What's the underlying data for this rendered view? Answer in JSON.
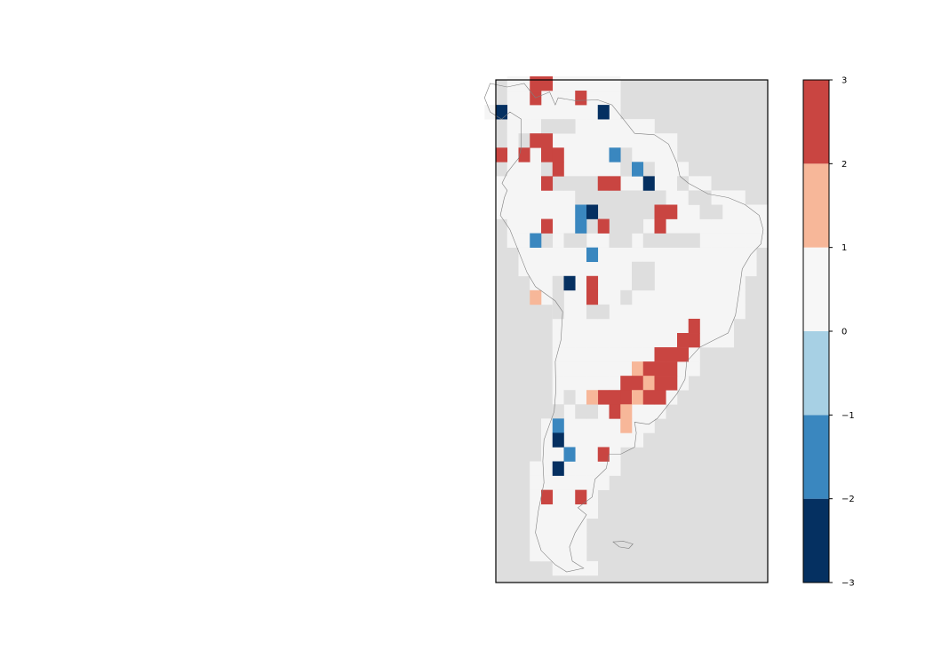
{
  "map": {
    "region": "South America",
    "background_color": "#dedede",
    "coastline_color": "#7f7f7f",
    "grid": {
      "lon_min": -82,
      "lon_max": -34,
      "lat_min": -57,
      "lat_max": 13.5,
      "cell_deg": 2
    },
    "land_fill_color": "#f5f5f5",
    "land_rows": [
      {
        "lat": 13,
        "cells": [
          [
            -79,
            -75
          ],
          [
            -73,
            -71
          ],
          [
            -69,
            -61
          ]
        ]
      },
      {
        "lat": 11,
        "cells": [
          [
            -79,
            -75
          ],
          [
            -73,
            -61
          ]
        ]
      },
      {
        "lat": 9,
        "cells": [
          [
            -83,
            -71
          ],
          [
            -69,
            -61
          ]
        ]
      },
      {
        "lat": 7,
        "cells": [
          [
            -79,
            -65
          ],
          [
            -63,
            -55
          ]
        ]
      },
      {
        "lat": 5,
        "cells": [
          [
            -79,
            -57
          ],
          [
            -55,
            -51
          ]
        ]
      },
      {
        "lat": 3,
        "cells": [
          [
            -79,
            -51
          ]
        ]
      },
      {
        "lat": 1,
        "cells": [
          [
            -79,
            -49
          ]
        ]
      },
      {
        "lat": -1,
        "cells": [
          [
            -81,
            -45
          ]
        ]
      },
      {
        "lat": -3,
        "cells": [
          [
            -81,
            -39
          ]
        ]
      },
      {
        "lat": -5,
        "cells": [
          [
            -81,
            -35
          ]
        ]
      },
      {
        "lat": -7,
        "cells": [
          [
            -79,
            -35
          ]
        ]
      },
      {
        "lat": -9,
        "cells": [
          [
            -79,
            -35
          ]
        ]
      },
      {
        "lat": -11,
        "cells": [
          [
            -77,
            -37
          ]
        ]
      },
      {
        "lat": -13,
        "cells": [
          [
            -77,
            -37
          ]
        ]
      },
      {
        "lat": -15,
        "cells": [
          [
            -75,
            -39
          ]
        ]
      },
      {
        "lat": -17,
        "cells": [
          [
            -73,
            -39
          ]
        ]
      },
      {
        "lat": -19,
        "cells": [
          [
            -71,
            -39
          ]
        ]
      },
      {
        "lat": -21,
        "cells": [
          [
            -71,
            -41
          ]
        ]
      },
      {
        "lat": -23,
        "cells": [
          [
            -71,
            -41
          ]
        ]
      },
      {
        "lat": -25,
        "cells": [
          [
            -71,
            -47
          ]
        ]
      },
      {
        "lat": -27,
        "cells": [
          [
            -71,
            -47
          ]
        ]
      },
      {
        "lat": -29,
        "cells": [
          [
            -71,
            -49
          ]
        ]
      },
      {
        "lat": -31,
        "cells": [
          [
            -71,
            -51
          ]
        ]
      },
      {
        "lat": -33,
        "cells": [
          [
            -71,
            -53
          ]
        ]
      },
      {
        "lat": -35,
        "cells": [
          [
            -73,
            -55
          ]
        ]
      },
      {
        "lat": -37,
        "cells": [
          [
            -73,
            -57
          ]
        ]
      },
      {
        "lat": -39,
        "cells": [
          [
            -73,
            -61
          ]
        ]
      },
      {
        "lat": -41,
        "cells": [
          [
            -75,
            -61
          ]
        ]
      },
      {
        "lat": -43,
        "cells": [
          [
            -75,
            -63
          ]
        ]
      },
      {
        "lat": -45,
        "cells": [
          [
            -75,
            -65
          ]
        ]
      },
      {
        "lat": -47,
        "cells": [
          [
            -75,
            -65
          ]
        ]
      },
      {
        "lat": -49,
        "cells": [
          [
            -75,
            -67
          ]
        ]
      },
      {
        "lat": -51,
        "cells": [
          [
            -75,
            -67
          ]
        ]
      },
      {
        "lat": -53,
        "cells": [
          [
            -75,
            -67
          ]
        ]
      },
      {
        "lat": -55,
        "cells": [
          [
            -71,
            -65
          ]
        ]
      }
    ],
    "gray_cells": [
      [
        -77,
        5
      ],
      [
        -75,
        5
      ],
      [
        -73,
        7
      ],
      [
        -71,
        7
      ],
      [
        -69,
        7
      ],
      [
        -73,
        1
      ],
      [
        -71,
        -1
      ],
      [
        -69,
        -1
      ],
      [
        -67,
        -1
      ],
      [
        -65,
        -1
      ],
      [
        -63,
        -1
      ],
      [
        -61,
        -1
      ],
      [
        -59,
        1
      ],
      [
        -57,
        1
      ],
      [
        -61,
        3
      ],
      [
        -59,
        3
      ],
      [
        -55,
        1
      ],
      [
        -67,
        -3
      ],
      [
        -65,
        -3
      ],
      [
        -63,
        -3
      ],
      [
        -61,
        -3
      ],
      [
        -59,
        -3
      ],
      [
        -57,
        -3
      ],
      [
        -55,
        -3
      ],
      [
        -53,
        -3
      ],
      [
        -65,
        -5
      ],
      [
        -63,
        -5
      ],
      [
        -61,
        -5
      ],
      [
        -59,
        -5
      ],
      [
        -57,
        -5
      ],
      [
        -55,
        -5
      ],
      [
        -65,
        -7
      ],
      [
        -63,
        -7
      ],
      [
        -61,
        -7
      ],
      [
        -59,
        -7
      ],
      [
        -57,
        -7
      ],
      [
        -53,
        -7
      ],
      [
        -59,
        -9
      ],
      [
        -55,
        -9
      ],
      [
        -53,
        -9
      ],
      [
        -51,
        -9
      ],
      [
        -49,
        -9
      ],
      [
        -47,
        -9
      ],
      [
        -73,
        -9
      ],
      [
        -69,
        -9
      ],
      [
        -67,
        -9
      ],
      [
        -61,
        -9
      ],
      [
        -57,
        -13
      ],
      [
        -55,
        -13
      ],
      [
        -71,
        -15
      ],
      [
        -57,
        -15
      ],
      [
        -55,
        -15
      ],
      [
        -71,
        -17
      ],
      [
        -59,
        -17
      ],
      [
        -71,
        -19
      ],
      [
        -65,
        -19
      ],
      [
        -63,
        -19
      ],
      [
        -49,
        -1
      ],
      [
        -47,
        -3
      ],
      [
        -45,
        -3
      ],
      [
        -45,
        -5
      ],
      [
        -43,
        -5
      ],
      [
        -71,
        -33
      ],
      [
        -69,
        -31
      ],
      [
        -65,
        -33
      ],
      [
        -61,
        -33
      ],
      [
        -67,
        -33
      ]
    ],
    "color_scale": {
      "bins": [
        -3,
        -2,
        -1,
        0,
        1,
        2,
        3
      ],
      "colors": [
        "#053061",
        "#3a87bf",
        "#a7d0e4",
        "#f7f7f7",
        "#f7b799",
        "#c94541",
        "#67001f"
      ]
    },
    "cells": [
      {
        "lon": -75,
        "lat": 13,
        "value": 2.6
      },
      {
        "lon": -73,
        "lat": 13,
        "value": 2.6
      },
      {
        "lon": -75,
        "lat": 11,
        "value": 2.6
      },
      {
        "lon": -67,
        "lat": 11,
        "value": 2.6
      },
      {
        "lon": -81,
        "lat": 9,
        "value": -2.6
      },
      {
        "lon": -63,
        "lat": 9,
        "value": -2.6
      },
      {
        "lon": -75,
        "lat": 5,
        "value": 2.6
      },
      {
        "lon": -73,
        "lat": 5,
        "value": 2.6
      },
      {
        "lon": -81,
        "lat": 3,
        "value": 2.6
      },
      {
        "lon": -77,
        "lat": 3,
        "value": 2.6
      },
      {
        "lon": -73,
        "lat": 3,
        "value": 2.6
      },
      {
        "lon": -71,
        "lat": 3,
        "value": 2.6
      },
      {
        "lon": -61,
        "lat": 3,
        "value": -1.6
      },
      {
        "lon": -71,
        "lat": 1,
        "value": 2.6
      },
      {
        "lon": -57,
        "lat": 1,
        "value": -1.6
      },
      {
        "lon": -73,
        "lat": -1,
        "value": 2.6
      },
      {
        "lon": -63,
        "lat": -1,
        "value": 2.6
      },
      {
        "lon": -61,
        "lat": -1,
        "value": 2.6
      },
      {
        "lon": -55,
        "lat": -1,
        "value": -2.6
      },
      {
        "lon": -67,
        "lat": -5,
        "value": -1.6
      },
      {
        "lon": -65,
        "lat": -5,
        "value": -2.6
      },
      {
        "lon": -53,
        "lat": -5,
        "value": 2.6
      },
      {
        "lon": -51,
        "lat": -5,
        "value": 2.6
      },
      {
        "lon": -73,
        "lat": -7,
        "value": 2.6
      },
      {
        "lon": -67,
        "lat": -7,
        "value": -1.6
      },
      {
        "lon": -63,
        "lat": -7,
        "value": 2.6
      },
      {
        "lon": -53,
        "lat": -7,
        "value": 2.6
      },
      {
        "lon": -75,
        "lat": -9,
        "value": -1.6
      },
      {
        "lon": -65,
        "lat": -11,
        "value": -1.6
      },
      {
        "lon": -69,
        "lat": -15,
        "value": -2.6
      },
      {
        "lon": -65,
        "lat": -15,
        "value": 2.6
      },
      {
        "lon": -65,
        "lat": -17,
        "value": 2.6
      },
      {
        "lon": -75,
        "lat": -17,
        "value": 1.6
      },
      {
        "lon": -47,
        "lat": -21,
        "value": 2.6
      },
      {
        "lon": -47,
        "lat": -23,
        "value": 2.6
      },
      {
        "lon": -49,
        "lat": -23,
        "value": 2.6
      },
      {
        "lon": -53,
        "lat": -25,
        "value": 2.6
      },
      {
        "lon": -51,
        "lat": -25,
        "value": 2.6
      },
      {
        "lon": -49,
        "lat": -25,
        "value": 2.6
      },
      {
        "lon": -57,
        "lat": -27,
        "value": 1.6
      },
      {
        "lon": -55,
        "lat": -27,
        "value": 2.6
      },
      {
        "lon": -53,
        "lat": -27,
        "value": 2.6
      },
      {
        "lon": -51,
        "lat": -27,
        "value": 2.6
      },
      {
        "lon": -59,
        "lat": -29,
        "value": 2.6
      },
      {
        "lon": -57,
        "lat": -29,
        "value": 2.6
      },
      {
        "lon": -55,
        "lat": -29,
        "value": 1.6
      },
      {
        "lon": -53,
        "lat": -29,
        "value": 2.6
      },
      {
        "lon": -51,
        "lat": -29,
        "value": 2.6
      },
      {
        "lon": -63,
        "lat": -31,
        "value": 2.6
      },
      {
        "lon": -61,
        "lat": -31,
        "value": 2.6
      },
      {
        "lon": -59,
        "lat": -31,
        "value": 2.6
      },
      {
        "lon": -57,
        "lat": -31,
        "value": 1.6
      },
      {
        "lon": -55,
        "lat": -31,
        "value": 2.6
      },
      {
        "lon": -53,
        "lat": -31,
        "value": 2.6
      },
      {
        "lon": -65,
        "lat": -31,
        "value": 1.6
      },
      {
        "lon": -61,
        "lat": -33,
        "value": 2.6
      },
      {
        "lon": -59,
        "lat": -33,
        "value": 1.6
      },
      {
        "lon": -59,
        "lat": -35,
        "value": 1.6
      },
      {
        "lon": -71,
        "lat": -35,
        "value": -1.6
      },
      {
        "lon": -71,
        "lat": -37,
        "value": -2.6
      },
      {
        "lon": -69,
        "lat": -39,
        "value": -1.6
      },
      {
        "lon": -63,
        "lat": -39,
        "value": 2.6
      },
      {
        "lon": -71,
        "lat": -41,
        "value": -2.6
      },
      {
        "lon": -73,
        "lat": -45,
        "value": 2.6
      },
      {
        "lon": -67,
        "lat": -45,
        "value": 2.6
      }
    ],
    "coastline": [
      [
        -77.5,
        8
      ],
      [
        -79.5,
        9
      ],
      [
        -81,
        8
      ],
      [
        -83,
        9
      ],
      [
        -84,
        11
      ],
      [
        -83,
        13
      ],
      [
        -80,
        12.5
      ],
      [
        -77,
        13
      ],
      [
        -75,
        11
      ],
      [
        -72.5,
        11.8
      ],
      [
        -71.5,
        10
      ],
      [
        -71,
        11
      ],
      [
        -68,
        10.6
      ],
      [
        -64,
        10.7
      ],
      [
        -61.5,
        10
      ],
      [
        -60,
        8.5
      ],
      [
        -57.5,
        6
      ],
      [
        -54,
        5.8
      ],
      [
        -51.5,
        4.5
      ],
      [
        -50,
        1.8
      ],
      [
        -49.5,
        0
      ],
      [
        -48,
        -1
      ],
      [
        -44.5,
        -2.5
      ],
      [
        -41,
        -3
      ],
      [
        -38,
        -4
      ],
      [
        -35.5,
        -5.5
      ],
      [
        -34.8,
        -7.5
      ],
      [
        -35.2,
        -9.5
      ],
      [
        -37,
        -11
      ],
      [
        -38.5,
        -13
      ],
      [
        -39,
        -16
      ],
      [
        -39.7,
        -19.5
      ],
      [
        -41,
        -22
      ],
      [
        -43.5,
        -23
      ],
      [
        -46,
        -24
      ],
      [
        -48.3,
        -26
      ],
      [
        -48.6,
        -28.5
      ],
      [
        -50,
        -30.5
      ],
      [
        -52,
        -32.5
      ],
      [
        -53.5,
        -34
      ],
      [
        -55,
        -34.8
      ],
      [
        -57.5,
        -34.5
      ],
      [
        -57.2,
        -36
      ],
      [
        -57.5,
        -38
      ],
      [
        -60,
        -39
      ],
      [
        -62,
        -39
      ],
      [
        -62.5,
        -41
      ],
      [
        -64.5,
        -42.5
      ],
      [
        -65,
        -45
      ],
      [
        -67.5,
        -46.5
      ],
      [
        -66,
        -47.5
      ],
      [
        -68,
        -50
      ],
      [
        -69,
        -52
      ],
      [
        -68.5,
        -54
      ],
      [
        -66.5,
        -55
      ],
      [
        -69.5,
        -55.5
      ],
      [
        -71.5,
        -54.5
      ],
      [
        -74,
        -52.5
      ],
      [
        -75,
        -50
      ],
      [
        -74.5,
        -47
      ],
      [
        -73.5,
        -43
      ],
      [
        -73.7,
        -40
      ],
      [
        -73.5,
        -37
      ],
      [
        -71.7,
        -33
      ],
      [
        -71.4,
        -30
      ],
      [
        -71.5,
        -26
      ],
      [
        -70.5,
        -23
      ],
      [
        -70.2,
        -19
      ],
      [
        -71.5,
        -17.5
      ],
      [
        -75,
        -15.5
      ],
      [
        -76.5,
        -13.5
      ],
      [
        -77.5,
        -11.5
      ],
      [
        -79.5,
        -7.5
      ],
      [
        -81.2,
        -5.5
      ],
      [
        -80.5,
        -3
      ],
      [
        -80,
        -2
      ],
      [
        -80.9,
        -1
      ],
      [
        -80,
        0.5
      ],
      [
        -79,
        1.5
      ],
      [
        -78,
        2.5
      ],
      [
        -77.5,
        4
      ],
      [
        -77.5,
        6
      ],
      [
        -77.5,
        8
      ]
    ],
    "falklands": [
      [
        -61.3,
        -51.3
      ],
      [
        -59.5,
        -51.2
      ],
      [
        -57.8,
        -51.6
      ],
      [
        -58.5,
        -52.2
      ],
      [
        -60.2,
        -52
      ],
      [
        -61.3,
        -51.3
      ]
    ]
  },
  "colorbar": {
    "ticks": [
      "3",
      "2",
      "1",
      "0",
      "−1",
      "−2",
      "−3"
    ],
    "tick_values": [
      3,
      2,
      1,
      0,
      -1,
      -2,
      -3
    ]
  }
}
